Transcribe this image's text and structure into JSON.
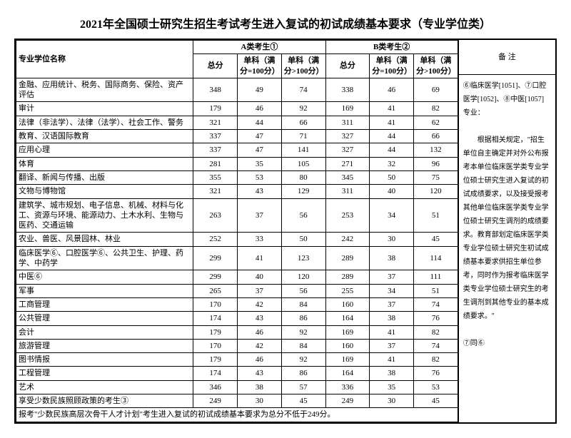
{
  "title": "2021年全国硕士研究生招生考试考生进入复试的初试成绩基本要求（专业学位类）",
  "headers": {
    "name": "专业学位名称",
    "catA": "A类考生①",
    "catB": "B类考生②",
    "total": "总分",
    "sub100": "单科（满分=100分）",
    "subOver": "单科（满分>100分）",
    "notes": "备  注"
  },
  "rows": [
    {
      "name": "金融、应用统计、税务、国际商务、保险、资产评估",
      "a": [
        348,
        49,
        74
      ],
      "b": [
        338,
        46,
        69
      ]
    },
    {
      "name": "审计",
      "a": [
        179,
        46,
        92
      ],
      "b": [
        169,
        41,
        82
      ]
    },
    {
      "name": "法律（非法学）、法律（法学）、社会工作、警务",
      "a": [
        321,
        44,
        66
      ],
      "b": [
        311,
        41,
        62
      ]
    },
    {
      "name": "教育、汉语国际教育",
      "a": [
        337,
        47,
        71
      ],
      "b": [
        327,
        44,
        66
      ]
    },
    {
      "name": "应用心理",
      "a": [
        337,
        47,
        141
      ],
      "b": [
        327,
        44,
        132
      ]
    },
    {
      "name": "体育",
      "a": [
        281,
        35,
        105
      ],
      "b": [
        271,
        32,
        96
      ]
    },
    {
      "name": "翻译、新闻与传播、出版",
      "a": [
        355,
        53,
        80
      ],
      "b": [
        345,
        50,
        75
      ]
    },
    {
      "name": "文物与博物馆",
      "a": [
        321,
        43,
        129
      ],
      "b": [
        311,
        40,
        120
      ]
    },
    {
      "name": "建筑学、城市规划、电子信息、机械、材料与化工、资源与环境、能源动力、土木水利、生物与医药、交通运输",
      "a": [
        263,
        37,
        56
      ],
      "b": [
        253,
        34,
        51
      ]
    },
    {
      "name": "农业、兽医、风景园林、林业",
      "a": [
        252,
        33,
        50
      ],
      "b": [
        242,
        30,
        45
      ]
    },
    {
      "name": "临床医学⑥、口腔医学⑥、公共卫生、护理、药学、中药学",
      "a": [
        299,
        41,
        123
      ],
      "b": [
        289,
        38,
        114
      ]
    },
    {
      "name": "中医⑥",
      "a": [
        299,
        40,
        120
      ],
      "b": [
        289,
        37,
        111
      ]
    },
    {
      "name": "军事",
      "a": [
        265,
        37,
        56
      ],
      "b": [
        255,
        34,
        51
      ]
    },
    {
      "name": "工商管理",
      "a": [
        170,
        42,
        84
      ],
      "b": [
        160,
        37,
        74
      ]
    },
    {
      "name": "公共管理",
      "a": [
        174,
        43,
        86
      ],
      "b": [
        164,
        38,
        76
      ]
    },
    {
      "name": "会计",
      "a": [
        179,
        46,
        92
      ],
      "b": [
        169,
        41,
        82
      ]
    },
    {
      "name": "旅游管理",
      "a": [
        170,
        42,
        84
      ],
      "b": [
        160,
        37,
        74
      ]
    },
    {
      "name": "图书情报",
      "a": [
        179,
        46,
        92
      ],
      "b": [
        169,
        41,
        82
      ]
    },
    {
      "name": "工程管理",
      "a": [
        174,
        43,
        86
      ],
      "b": [
        164,
        38,
        76
      ]
    },
    {
      "name": "艺术",
      "a": [
        346,
        38,
        57
      ],
      "b": [
        336,
        35,
        53
      ]
    },
    {
      "name": "享受少数民族照顾政策的考生③",
      "a": [
        249,
        30,
        45
      ],
      "b": [
        249,
        30,
        45
      ]
    }
  ],
  "footnote": "报考\"少数民族高层次骨干人才计划\"考生进入复试的初试成绩基本要求为总分不低于249分。",
  "notes_body": "⑥临床医学[1051]、⑦口腔医学[1052]、⑧中医[1057]专业：\n\n　　根据相关规定，\"招生单位自主确定并对外公布报考本单位临床医学类专业学位硕士研究生进入复试的初试成绩要求，以及接受报考其他单位临床医学类专业学位硕士研究生调剂的成绩要求。教育部划定临床医学类专业学位硕士研究生初试成绩基本要求供招生单位参考，同时作为报考临床医学类专业学位硕士研究生的考生调剂到其他专业的基本成绩要求。\"\n\n⑦同⑥"
}
